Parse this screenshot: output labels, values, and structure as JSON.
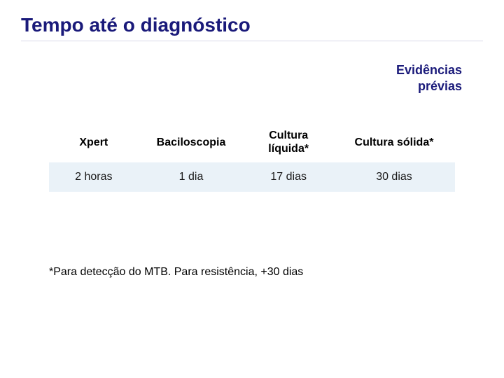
{
  "title": "Tempo até o diagnóstico",
  "subtitle_line1": "Evidências",
  "subtitle_line2": "prévias",
  "table": {
    "headers": {
      "c0": "Xpert",
      "c1": "Baciloscopia",
      "c2": "Cultura líquida*",
      "c3": "Cultura sólida*"
    },
    "row": {
      "c0": "2 horas",
      "c1": "1 dia",
      "c2": "17 dias",
      "c3": "30 dias"
    },
    "column_widths_pct": [
      22,
      26,
      22,
      30
    ]
  },
  "footnote": "*Para detecção do MTB. Para resistência, +30 dias",
  "colors": {
    "title_color": "#1a1a7a",
    "subtitle_color": "#1a1a7a",
    "row_bg": "#eaf2f8",
    "underline": "#d8d8e8",
    "background": "#ffffff"
  },
  "typography": {
    "title_fontsize_pt": 21,
    "subtitle_fontsize_pt": 14,
    "cell_fontsize_pt": 12,
    "footnote_fontsize_pt": 12,
    "font_family": "Arial"
  }
}
